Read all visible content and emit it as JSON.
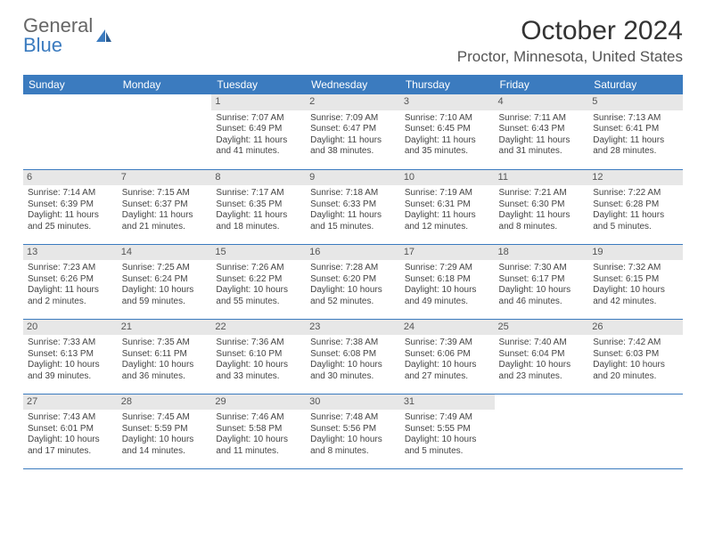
{
  "brand": {
    "part1": "General",
    "part2": "Blue"
  },
  "title": "October 2024",
  "location": "Proctor, Minnesota, United States",
  "colors": {
    "header_bg": "#3b7bbf",
    "header_text": "#ffffff",
    "daynum_bg": "#e7e7e7",
    "border": "#3b7bbf",
    "text": "#444444",
    "background": "#ffffff"
  },
  "weekdays": [
    "Sunday",
    "Monday",
    "Tuesday",
    "Wednesday",
    "Thursday",
    "Friday",
    "Saturday"
  ],
  "weeks": [
    [
      null,
      null,
      {
        "n": "1",
        "sunrise": "7:07 AM",
        "sunset": "6:49 PM",
        "daylight": "11 hours and 41 minutes."
      },
      {
        "n": "2",
        "sunrise": "7:09 AM",
        "sunset": "6:47 PM",
        "daylight": "11 hours and 38 minutes."
      },
      {
        "n": "3",
        "sunrise": "7:10 AM",
        "sunset": "6:45 PM",
        "daylight": "11 hours and 35 minutes."
      },
      {
        "n": "4",
        "sunrise": "7:11 AM",
        "sunset": "6:43 PM",
        "daylight": "11 hours and 31 minutes."
      },
      {
        "n": "5",
        "sunrise": "7:13 AM",
        "sunset": "6:41 PM",
        "daylight": "11 hours and 28 minutes."
      }
    ],
    [
      {
        "n": "6",
        "sunrise": "7:14 AM",
        "sunset": "6:39 PM",
        "daylight": "11 hours and 25 minutes."
      },
      {
        "n": "7",
        "sunrise": "7:15 AM",
        "sunset": "6:37 PM",
        "daylight": "11 hours and 21 minutes."
      },
      {
        "n": "8",
        "sunrise": "7:17 AM",
        "sunset": "6:35 PM",
        "daylight": "11 hours and 18 minutes."
      },
      {
        "n": "9",
        "sunrise": "7:18 AM",
        "sunset": "6:33 PM",
        "daylight": "11 hours and 15 minutes."
      },
      {
        "n": "10",
        "sunrise": "7:19 AM",
        "sunset": "6:31 PM",
        "daylight": "11 hours and 12 minutes."
      },
      {
        "n": "11",
        "sunrise": "7:21 AM",
        "sunset": "6:30 PM",
        "daylight": "11 hours and 8 minutes."
      },
      {
        "n": "12",
        "sunrise": "7:22 AM",
        "sunset": "6:28 PM",
        "daylight": "11 hours and 5 minutes."
      }
    ],
    [
      {
        "n": "13",
        "sunrise": "7:23 AM",
        "sunset": "6:26 PM",
        "daylight": "11 hours and 2 minutes."
      },
      {
        "n": "14",
        "sunrise": "7:25 AM",
        "sunset": "6:24 PM",
        "daylight": "10 hours and 59 minutes."
      },
      {
        "n": "15",
        "sunrise": "7:26 AM",
        "sunset": "6:22 PM",
        "daylight": "10 hours and 55 minutes."
      },
      {
        "n": "16",
        "sunrise": "7:28 AM",
        "sunset": "6:20 PM",
        "daylight": "10 hours and 52 minutes."
      },
      {
        "n": "17",
        "sunrise": "7:29 AM",
        "sunset": "6:18 PM",
        "daylight": "10 hours and 49 minutes."
      },
      {
        "n": "18",
        "sunrise": "7:30 AM",
        "sunset": "6:17 PM",
        "daylight": "10 hours and 46 minutes."
      },
      {
        "n": "19",
        "sunrise": "7:32 AM",
        "sunset": "6:15 PM",
        "daylight": "10 hours and 42 minutes."
      }
    ],
    [
      {
        "n": "20",
        "sunrise": "7:33 AM",
        "sunset": "6:13 PM",
        "daylight": "10 hours and 39 minutes."
      },
      {
        "n": "21",
        "sunrise": "7:35 AM",
        "sunset": "6:11 PM",
        "daylight": "10 hours and 36 minutes."
      },
      {
        "n": "22",
        "sunrise": "7:36 AM",
        "sunset": "6:10 PM",
        "daylight": "10 hours and 33 minutes."
      },
      {
        "n": "23",
        "sunrise": "7:38 AM",
        "sunset": "6:08 PM",
        "daylight": "10 hours and 30 minutes."
      },
      {
        "n": "24",
        "sunrise": "7:39 AM",
        "sunset": "6:06 PM",
        "daylight": "10 hours and 27 minutes."
      },
      {
        "n": "25",
        "sunrise": "7:40 AM",
        "sunset": "6:04 PM",
        "daylight": "10 hours and 23 minutes."
      },
      {
        "n": "26",
        "sunrise": "7:42 AM",
        "sunset": "6:03 PM",
        "daylight": "10 hours and 20 minutes."
      }
    ],
    [
      {
        "n": "27",
        "sunrise": "7:43 AM",
        "sunset": "6:01 PM",
        "daylight": "10 hours and 17 minutes."
      },
      {
        "n": "28",
        "sunrise": "7:45 AM",
        "sunset": "5:59 PM",
        "daylight": "10 hours and 14 minutes."
      },
      {
        "n": "29",
        "sunrise": "7:46 AM",
        "sunset": "5:58 PM",
        "daylight": "10 hours and 11 minutes."
      },
      {
        "n": "30",
        "sunrise": "7:48 AM",
        "sunset": "5:56 PM",
        "daylight": "10 hours and 8 minutes."
      },
      {
        "n": "31",
        "sunrise": "7:49 AM",
        "sunset": "5:55 PM",
        "daylight": "10 hours and 5 minutes."
      },
      null,
      null
    ]
  ],
  "labels": {
    "sunrise_prefix": "Sunrise: ",
    "sunset_prefix": "Sunset: ",
    "daylight_prefix": "Daylight: "
  }
}
